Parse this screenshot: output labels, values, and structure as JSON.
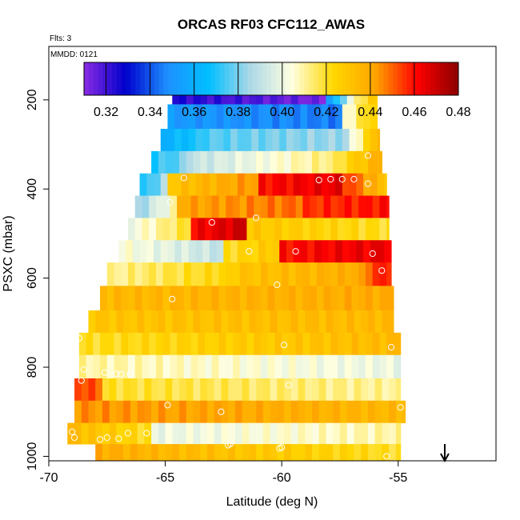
{
  "chart_data": {
    "type": "heatmap",
    "title": "ORCAS RF03 CFC112_AWAS",
    "subtitle": "Flts: 3",
    "annotation": "MMDD: 0121",
    "xlabel": "Latitude (deg N)",
    "ylabel": "PSXC (mbar)",
    "xlim": [
      -70,
      -50.8
    ],
    "ylim": [
      1010,
      80
    ],
    "x_ticks": [
      -70,
      -65,
      -60,
      -55
    ],
    "x_tick_labels": [
      "-70",
      "-65",
      "-60",
      "-55"
    ],
    "y_ticks": [
      200,
      400,
      600,
      800,
      1000
    ],
    "y_tick_labels": [
      "200",
      "400",
      "600",
      "800",
      "1000"
    ],
    "colorbar": {
      "min": 0.31,
      "max": 0.48,
      "ticks": [
        0.32,
        0.34,
        0.36,
        0.38,
        0.4,
        0.42,
        0.44,
        0.46,
        0.48
      ],
      "tick_labels": [
        "0.32",
        "0.34",
        "0.36",
        "0.38",
        "0.40",
        "0.42",
        "0.44",
        "0.46",
        "0.48"
      ],
      "colors": [
        "#8a2be2",
        "#0000cd",
        "#1e90ff",
        "#00bfff",
        "#add8e6",
        "#ffffe0",
        "#ffd700",
        "#ffa500",
        "#ff0000",
        "#8b0000"
      ]
    },
    "marker": {
      "label": "arrow",
      "x": -53.0
    },
    "rows": [
      {
        "p": 180,
        "x0": -64.7,
        "x1": -55.9,
        "segments": [
          {
            "x0": -64.7,
            "x1": -58.0,
            "start": 0.325,
            "end": 0.312
          },
          {
            "x0": -58.0,
            "x1": -57.0,
            "start": 0.35,
            "end": 0.4
          },
          {
            "x0": -57.0,
            "x1": -55.9,
            "start": 0.41,
            "end": 0.43
          }
        ]
      },
      {
        "p": 240,
        "x0": -64.9,
        "x1": -55.9,
        "segments": [
          {
            "x0": -64.9,
            "x1": -57.5,
            "start": 0.352,
            "end": 0.345
          },
          {
            "x0": -57.5,
            "x1": -55.9,
            "start": 0.4,
            "end": 0.43
          }
        ]
      },
      {
        "p": 290,
        "x0": -65.2,
        "x1": -55.8,
        "segments": [
          {
            "x0": -65.2,
            "x1": -63.5,
            "start": 0.36,
            "end": 0.37
          },
          {
            "x0": -63.5,
            "x1": -57.0,
            "start": 0.375,
            "end": 0.385
          },
          {
            "x0": -57.0,
            "x1": -55.8,
            "start": 0.4,
            "end": 0.44
          }
        ]
      },
      {
        "p": 340,
        "x0": -65.6,
        "x1": -55.7,
        "segments": [
          {
            "x0": -65.6,
            "x1": -64.0,
            "start": 0.37,
            "end": 0.38
          },
          {
            "x0": -64.0,
            "x1": -57.5,
            "start": 0.39,
            "end": 0.415
          },
          {
            "x0": -57.5,
            "x1": -55.7,
            "start": 0.42,
            "end": 0.44
          }
        ]
      },
      {
        "p": 390,
        "x0": -66.1,
        "x1": -55.5,
        "segments": [
          {
            "x0": -66.1,
            "x1": -64.8,
            "start": 0.365,
            "end": 0.39
          },
          {
            "x0": -64.8,
            "x1": -61.0,
            "start": 0.43,
            "end": 0.445
          },
          {
            "x0": -61.0,
            "x1": -57.5,
            "start": 0.46,
            "end": 0.465
          },
          {
            "x0": -57.5,
            "x1": -55.5,
            "start": 0.46,
            "end": 0.43
          }
        ]
      },
      {
        "p": 440,
        "x0": -66.3,
        "x1": -55.4,
        "segments": [
          {
            "x0": -66.3,
            "x1": -64.5,
            "start": 0.38,
            "end": 0.41
          },
          {
            "x0": -64.5,
            "x1": -59.0,
            "start": 0.44,
            "end": 0.45
          },
          {
            "x0": -59.0,
            "x1": -55.4,
            "start": 0.455,
            "end": 0.46
          }
        ]
      },
      {
        "p": 490,
        "x0": -66.6,
        "x1": -55.4,
        "segments": [
          {
            "x0": -66.6,
            "x1": -64.0,
            "start": 0.4,
            "end": 0.42
          },
          {
            "x0": -64.0,
            "x1": -61.5,
            "start": 0.46,
            "end": 0.47
          },
          {
            "x0": -61.5,
            "x1": -55.4,
            "start": 0.43,
            "end": 0.42
          }
        ]
      },
      {
        "p": 540,
        "x0": -67.0,
        "x1": -55.3,
        "segments": [
          {
            "x0": -67.0,
            "x1": -62.5,
            "start": 0.405,
            "end": 0.39
          },
          {
            "x0": -62.5,
            "x1": -60.2,
            "start": 0.42,
            "end": 0.43
          },
          {
            "x0": -60.2,
            "x1": -55.3,
            "start": 0.46,
            "end": 0.465
          }
        ]
      },
      {
        "p": 590,
        "x0": -67.5,
        "x1": -55.3,
        "segments": [
          {
            "x0": -67.5,
            "x1": -62.0,
            "start": 0.41,
            "end": 0.425
          },
          {
            "x0": -62.0,
            "x1": -56.5,
            "start": 0.43,
            "end": 0.44
          },
          {
            "x0": -56.5,
            "x1": -55.3,
            "start": 0.45,
            "end": 0.46
          }
        ]
      },
      {
        "p": 645,
        "x0": -67.8,
        "x1": -55.2,
        "segments": [
          {
            "x0": -67.8,
            "x1": -55.2,
            "start": 0.435,
            "end": 0.44
          }
        ]
      },
      {
        "p": 700,
        "x0": -68.3,
        "x1": -55.2,
        "segments": [
          {
            "x0": -68.3,
            "x1": -55.2,
            "start": 0.43,
            "end": 0.435
          }
        ]
      },
      {
        "p": 745,
        "x0": -68.7,
        "x1": -54.9,
        "segments": [
          {
            "x0": -68.7,
            "x1": -54.9,
            "start": 0.42,
            "end": 0.435
          }
        ]
      },
      {
        "p": 800,
        "x0": -68.7,
        "x1": -54.9,
        "segments": [
          {
            "x0": -68.7,
            "x1": -54.9,
            "start": 0.41,
            "end": 0.4
          }
        ]
      },
      {
        "p": 850,
        "x0": -68.9,
        "x1": -54.9,
        "segments": [
          {
            "x0": -68.9,
            "x1": -67.8,
            "start": 0.455,
            "end": 0.45
          },
          {
            "x0": -67.8,
            "x1": -54.9,
            "start": 0.42,
            "end": 0.41
          }
        ]
      },
      {
        "p": 900,
        "x0": -68.9,
        "x1": -54.7,
        "segments": [
          {
            "x0": -68.9,
            "x1": -54.7,
            "start": 0.445,
            "end": 0.435
          }
        ]
      },
      {
        "p": 950,
        "x0": -69.2,
        "x1": -54.9,
        "segments": [
          {
            "x0": -69.2,
            "x1": -65.5,
            "start": 0.435,
            "end": 0.42
          },
          {
            "x0": -65.5,
            "x1": -54.9,
            "start": 0.4,
            "end": 0.41
          }
        ]
      },
      {
        "p": 995,
        "x0": -68.0,
        "x1": -54.9,
        "segments": [
          {
            "x0": -68.0,
            "x1": -54.9,
            "start": 0.44,
            "end": 0.42
          }
        ]
      }
    ],
    "points": [
      [
        -64.5,
        180
      ],
      [
        -58.1,
        180
      ],
      [
        -57.8,
        182
      ],
      [
        -57.6,
        182
      ],
      [
        -56.0,
        180
      ],
      [
        -56.3,
        325
      ],
      [
        -64.2,
        375
      ],
      [
        -58.4,
        380
      ],
      [
        -57.9,
        378
      ],
      [
        -57.4,
        378
      ],
      [
        -56.9,
        378
      ],
      [
        -56.3,
        388
      ],
      [
        -64.8,
        430
      ],
      [
        -63.0,
        475
      ],
      [
        -61.1,
        465
      ],
      [
        -61.4,
        540
      ],
      [
        -59.4,
        540
      ],
      [
        -56.1,
        545
      ],
      [
        -55.7,
        583
      ],
      [
        -60.2,
        615
      ],
      [
        -64.7,
        647
      ],
      [
        -68.7,
        735
      ],
      [
        -55.3,
        755
      ],
      [
        -59.9,
        750
      ],
      [
        -68.5,
        805
      ],
      [
        -68.6,
        830
      ],
      [
        -67.6,
        812
      ],
      [
        -67.1,
        815
      ],
      [
        -66.9,
        816
      ],
      [
        -66.5,
        815
      ],
      [
        -59.7,
        840
      ],
      [
        -64.9,
        885
      ],
      [
        -62.6,
        900
      ],
      [
        -54.9,
        890
      ],
      [
        -69.0,
        945
      ],
      [
        -68.9,
        958
      ],
      [
        -67.8,
        962
      ],
      [
        -67.5,
        958
      ],
      [
        -67.0,
        960
      ],
      [
        -66.6,
        948
      ],
      [
        -65.8,
        948
      ],
      [
        -62.3,
        975
      ],
      [
        -62.2,
        972
      ],
      [
        -60.1,
        982
      ],
      [
        -60.0,
        980
      ],
      [
        -55.5,
        1000
      ]
    ]
  }
}
